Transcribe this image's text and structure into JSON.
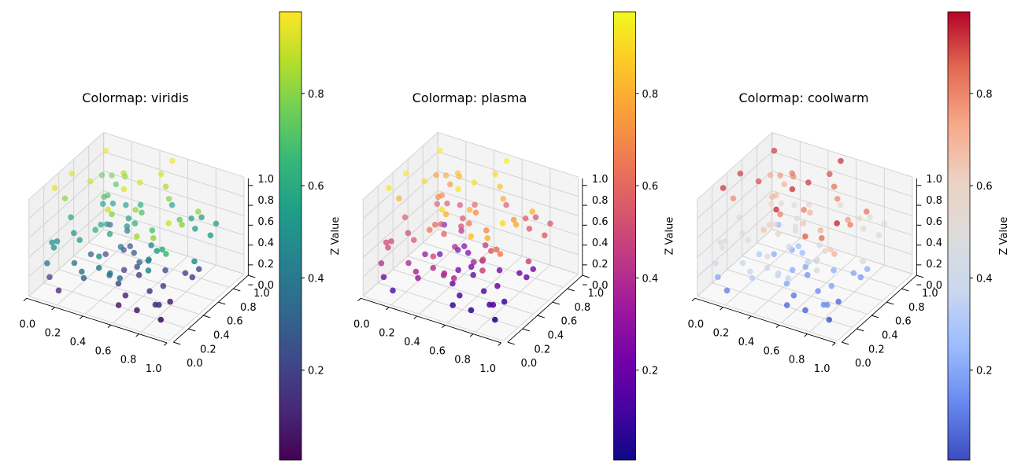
{
  "chart_data": [
    {
      "type": "scatter3d",
      "title": "Colormap: viridis",
      "colormap": "viridis",
      "colormap_stops": [
        "#440154",
        "#482878",
        "#3e4989",
        "#31688e",
        "#26828e",
        "#1f9e89",
        "#35b779",
        "#6ece58",
        "#b5de2b",
        "#fde725"
      ],
      "colorbar_label": "Z Value",
      "colorbar_range": [
        0.005,
        0.977
      ],
      "colorbar_ticks": [
        "0.2",
        "0.4",
        "0.6",
        "0.8"
      ],
      "x_ticks": [
        "0.0",
        "0.2",
        "0.4",
        "0.6",
        "0.8",
        "1.0"
      ],
      "y_ticks": [
        "0.0",
        "0.2",
        "0.4",
        "0.6",
        "0.8",
        "1.0"
      ],
      "z_ticks": [
        "0.0",
        "0.2",
        "0.4",
        "0.6",
        "0.8",
        "1.0"
      ],
      "xlim": [
        0,
        1
      ],
      "ylim": [
        0,
        1
      ],
      "zlim": [
        0,
        1
      ],
      "grid": true,
      "x": [
        0.09,
        0.5,
        0.035,
        0.03,
        0.16,
        0.1,
        0.17,
        0.26,
        0.27,
        0.44,
        0.49,
        0.56,
        0.4,
        0.21,
        0.07,
        0.21,
        0.22,
        0.16,
        0.21,
        0.27,
        0.38,
        0.52,
        0.5,
        0.43,
        0.41,
        0.62,
        0.53,
        0.86,
        0.71,
        0.74,
        0.87,
        0.77,
        0.84,
        0.83,
        0.79,
        0.91,
        0.07,
        0.38,
        0.5,
        0.3,
        0.3,
        0.12,
        0.39,
        0.36,
        0.33,
        0.39,
        0.66,
        0.78,
        0.7,
        0.15,
        0.25,
        0.09,
        0.11,
        0.13,
        0.42,
        0.38,
        0.34,
        0.44,
        0.6,
        0.72,
        0.78,
        0.86,
        0.25,
        0.27,
        0.42,
        0.58,
        0.59,
        0.51,
        0.46,
        0.54,
        0.75,
        0.69,
        0.95,
        0.86,
        0.8,
        0.85,
        0.13,
        0.26,
        0.43,
        0.35,
        0.37,
        0.5,
        0.52,
        0.6,
        0.51,
        0.11,
        0.18,
        0.76,
        0.69,
        0.56,
        0.57,
        0.82,
        0.8,
        0.82,
        0.69,
        0.86,
        0.7
      ],
      "y": [
        0.86,
        0.98,
        0.51,
        0.29,
        0.52,
        0.79,
        0.79,
        0.78,
        0.78,
        0.66,
        0.85,
        0.78,
        0.52,
        0.77,
        0.35,
        0.61,
        0.64,
        0.69,
        0.73,
        0.79,
        0.78,
        0.45,
        0.57,
        0.25,
        0.34,
        0.71,
        0.92,
        0.65,
        0.84,
        0.92,
        0.87,
        0.57,
        0.47,
        0.31,
        0.74,
        0.72,
        0.43,
        0.62,
        0.48,
        0.4,
        0.48,
        0.86,
        0.58,
        0.64,
        0.27,
        0.35,
        0.41,
        0.2,
        0.13,
        0.32,
        0.21,
        0.14,
        0.17,
        0.09,
        0.44,
        0.64,
        0.63,
        0.58,
        0.51,
        0.36,
        0.32,
        0.22,
        0.36,
        0.52,
        0.15,
        0.39,
        0.49,
        0.49,
        0.41,
        0.46,
        0.19,
        0.53,
        0.43,
        0.66,
        0.59,
        0.59,
        0.0,
        0.12,
        0.13,
        0.05,
        0.04,
        0.14,
        0.11,
        0.09,
        0.24,
        0.07,
        0.06,
        0.37,
        0.32,
        0.24,
        0.13,
        0.35,
        0.19,
        0.2,
        0.15,
        0.15,
        0.29
      ],
      "z": [
        0.95,
        0.95,
        0.93,
        0.93,
        0.9,
        0.75,
        0.78,
        0.85,
        0.82,
        0.92,
        0.9,
        0.85,
        0.93,
        0.72,
        0.8,
        0.7,
        0.7,
        0.55,
        0.55,
        0.52,
        0.58,
        0.82,
        0.7,
        0.92,
        0.8,
        0.8,
        0.55,
        0.82,
        0.55,
        0.52,
        0.55,
        0.75,
        0.8,
        0.92,
        0.55,
        0.55,
        0.55,
        0.55,
        0.65,
        0.6,
        0.55,
        0.2,
        0.5,
        0.4,
        0.65,
        0.58,
        0.7,
        0.82,
        0.85,
        0.5,
        0.55,
        0.5,
        0.5,
        0.5,
        0.4,
        0.25,
        0.2,
        0.25,
        0.45,
        0.55,
        0.62,
        0.68,
        0.3,
        0.2,
        0.5,
        0.35,
        0.3,
        0.2,
        0.2,
        0.15,
        0.48,
        0.22,
        0.5,
        0.22,
        0.2,
        0.18,
        0.4,
        0.38,
        0.4,
        0.38,
        0.33,
        0.35,
        0.4,
        0.4,
        0.2,
        0.2,
        0.1,
        0.2,
        0.15,
        0.1,
        0.08,
        0.08,
        0.15,
        0.15,
        0.07,
        0.05,
        0.5
      ]
    },
    {
      "type": "scatter3d",
      "title": "Colormap: plasma",
      "colormap": "plasma",
      "colormap_stops": [
        "#0d0887",
        "#46039f",
        "#7201a8",
        "#9c179e",
        "#bd3786",
        "#d8576b",
        "#ed7953",
        "#fb9f3a",
        "#fdca26",
        "#f0f921"
      ],
      "colorbar_label": "Z Value",
      "colorbar_range": [
        0.005,
        0.977
      ],
      "colorbar_ticks": [
        "0.2",
        "0.4",
        "0.6",
        "0.8"
      ],
      "x_ticks": [
        "0.0",
        "0.2",
        "0.4",
        "0.6",
        "0.8",
        "1.0"
      ],
      "y_ticks": [
        "0.0",
        "0.2",
        "0.4",
        "0.6",
        "0.8",
        "1.0"
      ],
      "z_ticks": [
        "0.0",
        "0.2",
        "0.4",
        "0.6",
        "0.8",
        "1.0"
      ],
      "xlim": [
        0,
        1
      ],
      "ylim": [
        0,
        1
      ],
      "zlim": [
        0,
        1
      ],
      "grid": true,
      "x": [
        0.09,
        0.5,
        0.035,
        0.03,
        0.16,
        0.1,
        0.17,
        0.26,
        0.27,
        0.44,
        0.49,
        0.56,
        0.4,
        0.21,
        0.07,
        0.21,
        0.22,
        0.16,
        0.21,
        0.27,
        0.38,
        0.52,
        0.5,
        0.43,
        0.41,
        0.62,
        0.53,
        0.86,
        0.71,
        0.74,
        0.87,
        0.77,
        0.84,
        0.83,
        0.79,
        0.91,
        0.07,
        0.38,
        0.5,
        0.3,
        0.3,
        0.12,
        0.39,
        0.36,
        0.33,
        0.39,
        0.66,
        0.78,
        0.7,
        0.15,
        0.25,
        0.09,
        0.11,
        0.13,
        0.42,
        0.38,
        0.34,
        0.44,
        0.6,
        0.72,
        0.78,
        0.86,
        0.25,
        0.27,
        0.42,
        0.58,
        0.59,
        0.51,
        0.46,
        0.54,
        0.75,
        0.69,
        0.95,
        0.86,
        0.8,
        0.85,
        0.13,
        0.26,
        0.43,
        0.35,
        0.37,
        0.5,
        0.52,
        0.6,
        0.51,
        0.11,
        0.18,
        0.76,
        0.69,
        0.56,
        0.57,
        0.82,
        0.8,
        0.82,
        0.69,
        0.86,
        0.7
      ],
      "y": [
        0.86,
        0.98,
        0.51,
        0.29,
        0.52,
        0.79,
        0.79,
        0.78,
        0.78,
        0.66,
        0.85,
        0.78,
        0.52,
        0.77,
        0.35,
        0.61,
        0.64,
        0.69,
        0.73,
        0.79,
        0.78,
        0.45,
        0.57,
        0.25,
        0.34,
        0.71,
        0.92,
        0.65,
        0.84,
        0.92,
        0.87,
        0.57,
        0.47,
        0.31,
        0.74,
        0.72,
        0.43,
        0.62,
        0.48,
        0.4,
        0.48,
        0.86,
        0.58,
        0.64,
        0.27,
        0.35,
        0.41,
        0.2,
        0.13,
        0.32,
        0.21,
        0.14,
        0.17,
        0.09,
        0.44,
        0.64,
        0.63,
        0.58,
        0.51,
        0.36,
        0.32,
        0.22,
        0.36,
        0.52,
        0.15,
        0.39,
        0.49,
        0.49,
        0.41,
        0.46,
        0.19,
        0.53,
        0.43,
        0.66,
        0.59,
        0.59,
        0.0,
        0.12,
        0.13,
        0.05,
        0.04,
        0.14,
        0.11,
        0.09,
        0.24,
        0.07,
        0.06,
        0.37,
        0.32,
        0.24,
        0.13,
        0.35,
        0.19,
        0.2,
        0.15,
        0.15,
        0.29
      ],
      "z": [
        0.95,
        0.95,
        0.93,
        0.93,
        0.9,
        0.75,
        0.78,
        0.85,
        0.82,
        0.92,
        0.9,
        0.85,
        0.93,
        0.72,
        0.8,
        0.7,
        0.7,
        0.55,
        0.55,
        0.52,
        0.58,
        0.82,
        0.7,
        0.92,
        0.8,
        0.8,
        0.55,
        0.82,
        0.55,
        0.52,
        0.55,
        0.75,
        0.8,
        0.92,
        0.55,
        0.55,
        0.55,
        0.55,
        0.65,
        0.6,
        0.55,
        0.2,
        0.5,
        0.4,
        0.65,
        0.58,
        0.7,
        0.82,
        0.85,
        0.5,
        0.55,
        0.5,
        0.5,
        0.5,
        0.4,
        0.25,
        0.2,
        0.25,
        0.45,
        0.55,
        0.62,
        0.68,
        0.3,
        0.2,
        0.5,
        0.35,
        0.3,
        0.2,
        0.2,
        0.15,
        0.48,
        0.22,
        0.5,
        0.22,
        0.2,
        0.18,
        0.4,
        0.38,
        0.4,
        0.38,
        0.33,
        0.35,
        0.4,
        0.4,
        0.2,
        0.2,
        0.1,
        0.2,
        0.15,
        0.1,
        0.08,
        0.08,
        0.15,
        0.15,
        0.07,
        0.05,
        0.5
      ]
    },
    {
      "type": "scatter3d",
      "title": "Colormap: coolwarm",
      "colormap": "coolwarm",
      "colormap_stops": [
        "#3b4cc0",
        "#6788ee",
        "#9abbff",
        "#c9d7f0",
        "#dddcdc",
        "#edd1c2",
        "#f7a889",
        "#e26952",
        "#b40426"
      ],
      "colorbar_label": "Z Value",
      "colorbar_range": [
        0.005,
        0.977
      ],
      "colorbar_ticks": [
        "0.2",
        "0.4",
        "0.6",
        "0.8"
      ],
      "x_ticks": [
        "0.0",
        "0.2",
        "0.4",
        "0.6",
        "0.8",
        "1.0"
      ],
      "y_ticks": [
        "0.0",
        "0.2",
        "0.4",
        "0.6",
        "0.8",
        "1.0"
      ],
      "z_ticks": [
        "0.0",
        "0.2",
        "0.4",
        "0.6",
        "0.8",
        "1.0"
      ],
      "xlim": [
        0,
        1
      ],
      "ylim": [
        0,
        1
      ],
      "zlim": [
        0,
        1
      ],
      "grid": true,
      "x": [
        0.09,
        0.5,
        0.035,
        0.03,
        0.16,
        0.1,
        0.17,
        0.26,
        0.27,
        0.44,
        0.49,
        0.56,
        0.4,
        0.21,
        0.07,
        0.21,
        0.22,
        0.16,
        0.21,
        0.27,
        0.38,
        0.52,
        0.5,
        0.43,
        0.41,
        0.62,
        0.53,
        0.86,
        0.71,
        0.74,
        0.87,
        0.77,
        0.84,
        0.83,
        0.79,
        0.91,
        0.07,
        0.38,
        0.5,
        0.3,
        0.3,
        0.12,
        0.39,
        0.36,
        0.33,
        0.39,
        0.66,
        0.78,
        0.7,
        0.15,
        0.25,
        0.09,
        0.11,
        0.13,
        0.42,
        0.38,
        0.34,
        0.44,
        0.6,
        0.72,
        0.78,
        0.86,
        0.25,
        0.27,
        0.42,
        0.58,
        0.59,
        0.51,
        0.46,
        0.54,
        0.75,
        0.69,
        0.95,
        0.86,
        0.8,
        0.85,
        0.13,
        0.26,
        0.43,
        0.35,
        0.37,
        0.5,
        0.52,
        0.6,
        0.51,
        0.11,
        0.18,
        0.76,
        0.69,
        0.56,
        0.57,
        0.82,
        0.8,
        0.82,
        0.69,
        0.86,
        0.7
      ],
      "y": [
        0.86,
        0.98,
        0.51,
        0.29,
        0.52,
        0.79,
        0.79,
        0.78,
        0.78,
        0.66,
        0.85,
        0.78,
        0.52,
        0.77,
        0.35,
        0.61,
        0.64,
        0.69,
        0.73,
        0.79,
        0.78,
        0.45,
        0.57,
        0.25,
        0.34,
        0.71,
        0.92,
        0.65,
        0.84,
        0.92,
        0.87,
        0.57,
        0.47,
        0.31,
        0.74,
        0.72,
        0.43,
        0.62,
        0.48,
        0.4,
        0.48,
        0.86,
        0.58,
        0.64,
        0.27,
        0.35,
        0.41,
        0.2,
        0.13,
        0.32,
        0.21,
        0.14,
        0.17,
        0.09,
        0.44,
        0.64,
        0.63,
        0.58,
        0.51,
        0.36,
        0.32,
        0.22,
        0.36,
        0.52,
        0.15,
        0.39,
        0.49,
        0.49,
        0.41,
        0.46,
        0.19,
        0.53,
        0.43,
        0.66,
        0.59,
        0.59,
        0.0,
        0.12,
        0.13,
        0.05,
        0.04,
        0.14,
        0.11,
        0.09,
        0.24,
        0.07,
        0.06,
        0.37,
        0.32,
        0.24,
        0.13,
        0.35,
        0.19,
        0.2,
        0.15,
        0.15,
        0.29
      ],
      "z": [
        0.95,
        0.95,
        0.93,
        0.93,
        0.9,
        0.75,
        0.78,
        0.85,
        0.82,
        0.92,
        0.9,
        0.85,
        0.93,
        0.72,
        0.8,
        0.7,
        0.7,
        0.55,
        0.55,
        0.52,
        0.58,
        0.82,
        0.7,
        0.92,
        0.8,
        0.8,
        0.55,
        0.82,
        0.55,
        0.52,
        0.55,
        0.75,
        0.8,
        0.92,
        0.55,
        0.55,
        0.55,
        0.55,
        0.65,
        0.6,
        0.55,
        0.2,
        0.5,
        0.4,
        0.65,
        0.58,
        0.7,
        0.82,
        0.85,
        0.5,
        0.55,
        0.5,
        0.5,
        0.5,
        0.4,
        0.25,
        0.2,
        0.25,
        0.45,
        0.55,
        0.62,
        0.68,
        0.3,
        0.2,
        0.5,
        0.35,
        0.3,
        0.2,
        0.2,
        0.15,
        0.48,
        0.22,
        0.5,
        0.22,
        0.2,
        0.18,
        0.4,
        0.38,
        0.4,
        0.38,
        0.33,
        0.35,
        0.4,
        0.4,
        0.2,
        0.2,
        0.1,
        0.2,
        0.15,
        0.1,
        0.08,
        0.08,
        0.15,
        0.15,
        0.07,
        0.05,
        0.5
      ]
    }
  ]
}
